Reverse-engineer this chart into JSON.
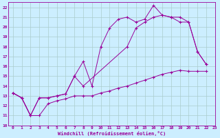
{
  "xlabel": "Windchill (Refroidissement éolien,°C)",
  "bg_color": "#cceeff",
  "grid_color": "#aacccc",
  "line_color": "#990099",
  "xlim": [
    -0.5,
    23
  ],
  "ylim": [
    10,
    22.5
  ],
  "xticks": [
    0,
    1,
    2,
    3,
    4,
    5,
    6,
    7,
    8,
    9,
    10,
    11,
    12,
    13,
    14,
    15,
    16,
    17,
    18,
    19,
    20,
    21,
    22,
    23
  ],
  "yticks": [
    10,
    11,
    12,
    13,
    14,
    15,
    16,
    17,
    18,
    19,
    20,
    21,
    22
  ],
  "line1_x": [
    0,
    1,
    2,
    3,
    4,
    5,
    6,
    7,
    8,
    9,
    10,
    11,
    12,
    13,
    14,
    15,
    16,
    17,
    18,
    19,
    20,
    21,
    22
  ],
  "line1_y": [
    13.3,
    12.8,
    11.0,
    11.0,
    12.2,
    12.5,
    12.7,
    13.0,
    13.0,
    13.0,
    13.3,
    13.5,
    13.8,
    14.0,
    14.3,
    14.6,
    14.9,
    15.2,
    15.4,
    15.6,
    15.5,
    15.5,
    15.5
  ],
  "line2_x": [
    0,
    1,
    2,
    3,
    4,
    5,
    6,
    7,
    8,
    13,
    14,
    15,
    16,
    17,
    18,
    19,
    20,
    21,
    22
  ],
  "line2_y": [
    13.3,
    12.8,
    11.0,
    12.8,
    12.8,
    13.0,
    13.2,
    15.0,
    14.0,
    18.0,
    19.9,
    20.5,
    21.0,
    21.2,
    21.0,
    21.0,
    20.5,
    17.5,
    16.2
  ],
  "line3_x": [
    0,
    1,
    2,
    3,
    4,
    5,
    6,
    7,
    8,
    9,
    10,
    11,
    12,
    13,
    14,
    15,
    16,
    17,
    18,
    19,
    20,
    21,
    22
  ],
  "line3_y": [
    13.3,
    12.8,
    11.0,
    12.8,
    12.8,
    13.0,
    13.2,
    15.0,
    16.5,
    14.0,
    18.0,
    19.9,
    20.8,
    21.0,
    20.5,
    20.8,
    22.2,
    21.2,
    21.0,
    20.5,
    20.5,
    17.5,
    16.2
  ]
}
